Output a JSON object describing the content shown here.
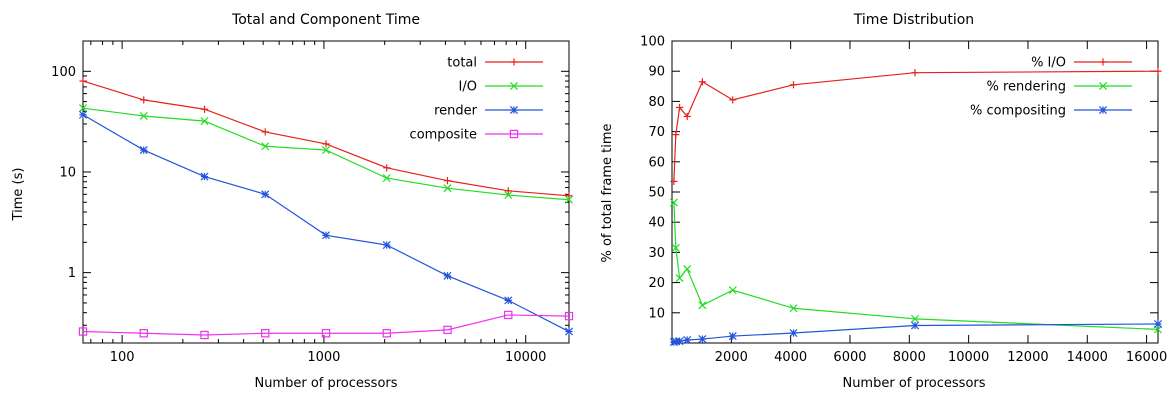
{
  "chart_data": [
    {
      "type": "line",
      "title": "Total and Component Time",
      "xlabel": "Number of processors",
      "ylabel": "Time (s)",
      "xscale": "log",
      "yscale": "log",
      "xlim": [
        64,
        16384
      ],
      "ylim": [
        0.2,
        200
      ],
      "xticks": [
        {
          "value": 100,
          "label": "100"
        },
        {
          "value": 1000,
          "label": "1000"
        },
        {
          "value": 10000,
          "label": "10000"
        }
      ],
      "yticks": [
        {
          "value": 1,
          "label": "1"
        },
        {
          "value": 10,
          "label": "10"
        },
        {
          "value": 100,
          "label": "100"
        }
      ],
      "legend_position": "top-right",
      "x": [
        64,
        128,
        256,
        512,
        1024,
        2048,
        4096,
        8192,
        16384
      ],
      "series": [
        {
          "name": "total",
          "color": "#e8211d",
          "marker": "plus",
          "values": [
            80,
            52,
            42,
            25,
            19,
            11,
            8.2,
            6.5,
            5.8
          ]
        },
        {
          "name": "I/O",
          "color": "#22dd22",
          "marker": "x",
          "values": [
            43,
            36,
            32,
            18,
            16.5,
            8.7,
            6.9,
            5.9,
            5.3
          ]
        },
        {
          "name": "render",
          "color": "#2255dd",
          "marker": "star",
          "values": [
            37,
            16.5,
            9,
            6,
            2.35,
            1.88,
            0.93,
            0.53,
            0.26
          ]
        },
        {
          "name": "composite",
          "color": "#ee33ee",
          "marker": "square",
          "values": [
            0.26,
            0.25,
            0.24,
            0.25,
            0.25,
            0.25,
            0.27,
            0.38,
            0.37
          ]
        }
      ]
    },
    {
      "type": "line",
      "title": "Time Distribution",
      "xlabel": "Number of processors",
      "ylabel": "% of total frame time",
      "xscale": "linear",
      "yscale": "linear",
      "xlim": [
        0,
        16384
      ],
      "ylim": [
        0,
        100
      ],
      "xticks": [
        {
          "value": 2000,
          "label": "2000"
        },
        {
          "value": 4000,
          "label": "4000"
        },
        {
          "value": 6000,
          "label": "6000"
        },
        {
          "value": 8000,
          "label": "8000"
        },
        {
          "value": 10000,
          "label": "10000"
        },
        {
          "value": 12000,
          "label": "12000"
        },
        {
          "value": 14000,
          "label": "14000"
        },
        {
          "value": 16000,
          "label": "16000"
        }
      ],
      "yticks": [
        {
          "value": 10,
          "label": "10"
        },
        {
          "value": 20,
          "label": "20"
        },
        {
          "value": 30,
          "label": "30"
        },
        {
          "value": 40,
          "label": "40"
        },
        {
          "value": 50,
          "label": "50"
        },
        {
          "value": 60,
          "label": "60"
        },
        {
          "value": 70,
          "label": "70"
        },
        {
          "value": 80,
          "label": "80"
        },
        {
          "value": 90,
          "label": "90"
        },
        {
          "value": 100,
          "label": "100"
        }
      ],
      "legend_position": "top-right",
      "x": [
        64,
        128,
        256,
        512,
        1024,
        2048,
        4096,
        8192,
        16384
      ],
      "series": [
        {
          "name": "% I/O",
          "color": "#e8211d",
          "marker": "plus",
          "values": [
            53.5,
            69,
            78,
            75,
            86.5,
            80.5,
            85.5,
            89.5,
            90
          ]
        },
        {
          "name": "% rendering",
          "color": "#22dd22",
          "marker": "x",
          "values": [
            46.5,
            31.5,
            21.5,
            24.5,
            12.5,
            17.5,
            11.5,
            8,
            4.5
          ]
        },
        {
          "name": "% compositing",
          "color": "#2255dd",
          "marker": "star",
          "values": [
            0.3,
            0.5,
            0.6,
            1,
            1.3,
            2.3,
            3.3,
            5.8,
            6.3
          ]
        }
      ]
    }
  ]
}
